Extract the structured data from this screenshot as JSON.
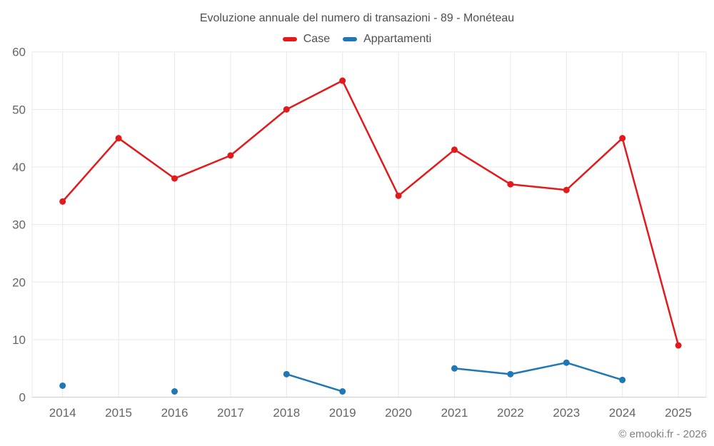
{
  "chart": {
    "title": "Evoluzione annuale del numero di transazioni - 89 - Monéteau",
    "footer": "© emooki.fr - 2026"
  },
  "chart_data": {
    "type": "line",
    "title": "Evoluzione annuale del numero di transazioni - 89 - Monéteau",
    "categories": [
      "2014",
      "2015",
      "2016",
      "2017",
      "2018",
      "2019",
      "2020",
      "2021",
      "2022",
      "2023",
      "2024",
      "2025"
    ],
    "series": [
      {
        "name": "Case",
        "color": "#e31a1c",
        "values": [
          34,
          45,
          38,
          42,
          50,
          55,
          35,
          43,
          37,
          36,
          45,
          9
        ]
      },
      {
        "name": "Appartamenti",
        "color": "#1f78b4",
        "values": [
          2,
          null,
          1,
          null,
          4,
          1,
          null,
          5,
          4,
          6,
          3,
          null
        ]
      }
    ],
    "xlabel": "",
    "ylabel": "",
    "ylim": [
      0,
      60
    ],
    "yticks": [
      0,
      10,
      20,
      30,
      40,
      50,
      60
    ],
    "grid": true,
    "legend_position": "top",
    "marker": "circle",
    "footer": "© emooki.fr - 2026"
  }
}
